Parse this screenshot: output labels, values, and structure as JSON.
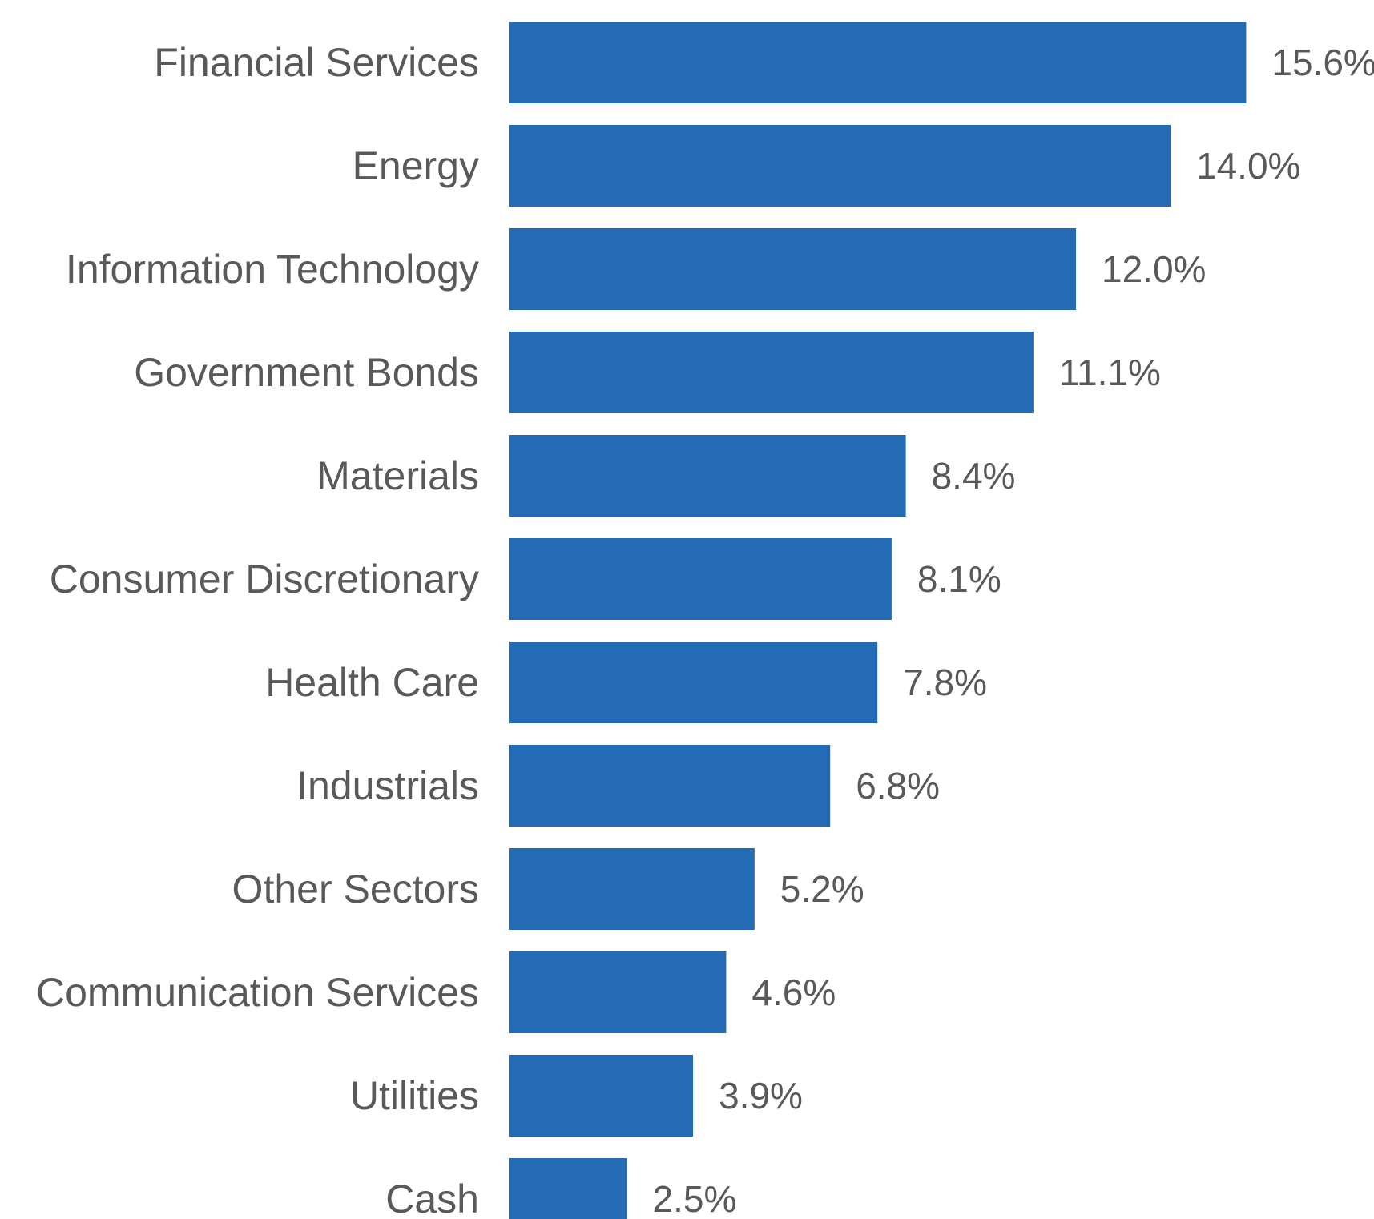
{
  "chart_data": {
    "type": "bar",
    "orientation": "horizontal",
    "categories": [
      "Financial Services",
      "Energy",
      "Information Technology",
      "Government Bonds",
      "Materials",
      "Consumer Discretionary",
      "Health Care",
      "Industrials",
      "Other Sectors",
      "Communication Services",
      "Utilities",
      "Cash"
    ],
    "values": [
      15.6,
      14.0,
      12.0,
      11.1,
      8.4,
      8.1,
      7.8,
      6.8,
      5.2,
      4.6,
      3.9,
      2.5
    ],
    "value_labels": [
      "15.6%",
      "14.0%",
      "12.0%",
      "11.1%",
      "8.4%",
      "8.1%",
      "7.8%",
      "6.8%",
      "5.2%",
      "4.6%",
      "3.9%",
      "2.5%"
    ],
    "unit": "%",
    "title": "",
    "xlabel": "",
    "ylabel": "",
    "grid": false,
    "legend": "none",
    "bar_color": "#236BB5"
  },
  "colors": {
    "bar": "#236BB5",
    "text": "#595959",
    "background": "#FFFFFF"
  }
}
